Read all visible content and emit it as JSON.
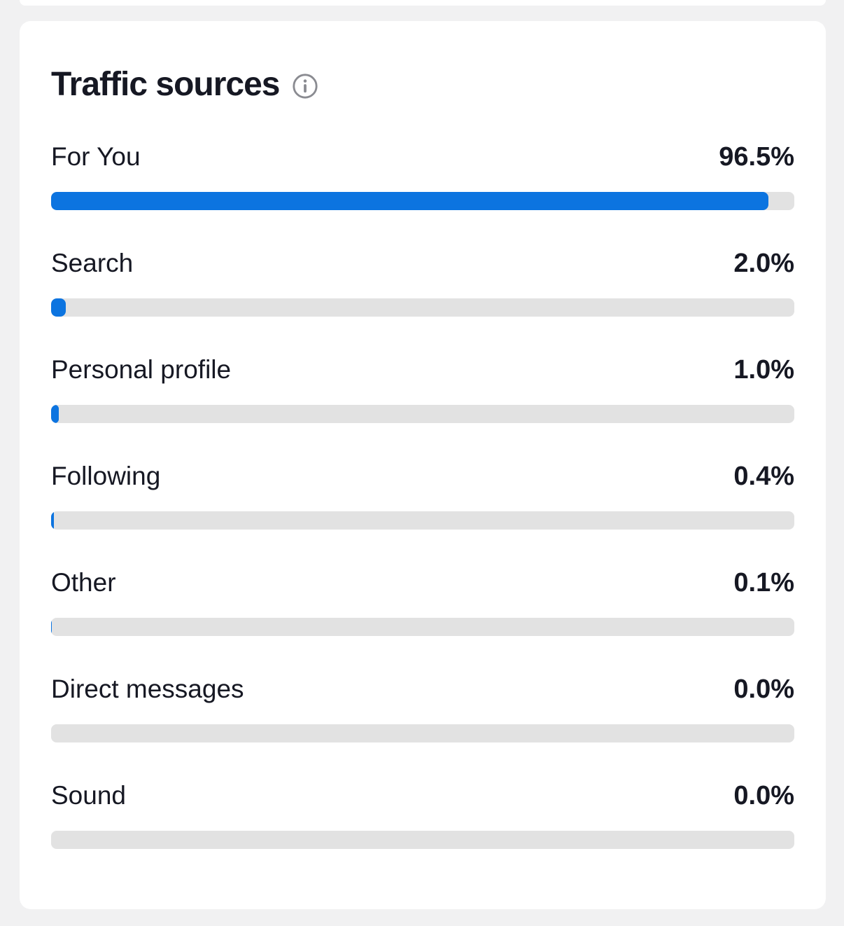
{
  "card": {
    "title": "Traffic sources"
  },
  "chart_data": {
    "type": "bar",
    "orientation": "horizontal",
    "title": "Traffic sources",
    "categories": [
      "For You",
      "Search",
      "Personal profile",
      "Following",
      "Other",
      "Direct messages",
      "Sound"
    ],
    "values": [
      96.5,
      2.0,
      1.0,
      0.4,
      0.1,
      0.0,
      0.0
    ],
    "value_labels": [
      "96.5%",
      "2.0%",
      "1.0%",
      "0.4%",
      "0.1%",
      "0.0%",
      "0.0%"
    ],
    "unit": "%",
    "xlim": [
      0,
      100
    ],
    "grid": false,
    "legend": false
  },
  "icons": {
    "info": "info-icon"
  },
  "colors": {
    "bar_fill": "#0c74e0",
    "bar_track": "#e2e2e2",
    "card_background": "#ffffff",
    "page_background": "#f1f1f2",
    "text": "#161823",
    "info_icon": "#8a8b91"
  }
}
